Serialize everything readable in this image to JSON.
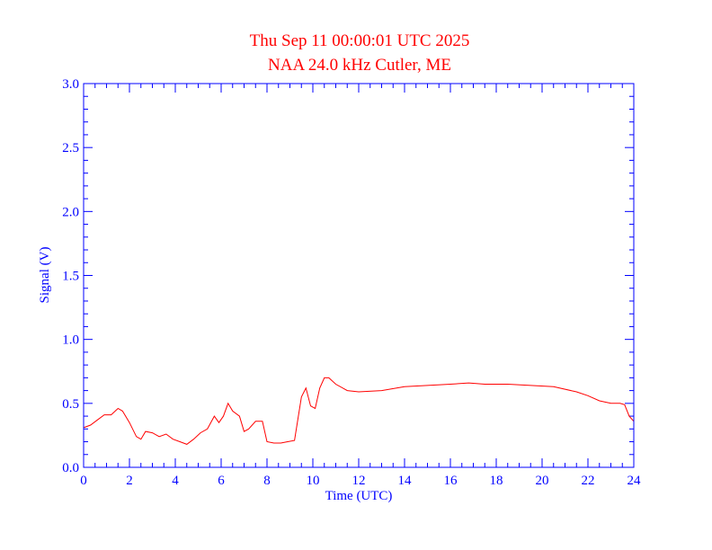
{
  "chart_data": {
    "type": "line",
    "title": "Thu Sep 11 00:00:01 UTC 2025",
    "subtitle": "NAA 24.0 kHz Cutler, ME",
    "xlabel": "Time (UTC)",
    "ylabel": "Signal (V)",
    "xlim": [
      0,
      24
    ],
    "ylim": [
      0,
      3.0
    ],
    "x_ticks": [
      "0",
      "2",
      "4",
      "6",
      "8",
      "10",
      "12",
      "14",
      "16",
      "18",
      "20",
      "22",
      "24"
    ],
    "y_ticks": [
      "0.0",
      "0.5",
      "1.0",
      "1.5",
      "2.0",
      "2.5",
      "3.0"
    ],
    "grid": false,
    "colors": {
      "axis": "#0000ff",
      "series": "#ff0000",
      "title": "#ff0000"
    },
    "series": [
      {
        "x": [
          0,
          0.3,
          0.6,
          0.9,
          1.2,
          1.5,
          1.7,
          2.0,
          2.3,
          2.5,
          2.7,
          3.0,
          3.3,
          3.6,
          3.9,
          4.2,
          4.5,
          4.8,
          5.1,
          5.4,
          5.7,
          5.9,
          6.1,
          6.3,
          6.5,
          6.8,
          7.0,
          7.2,
          7.5,
          7.8,
          8.0,
          8.3,
          8.6,
          8.9,
          9.2,
          9.5,
          9.7,
          9.9,
          10.1,
          10.3,
          10.5,
          10.7,
          11.0,
          11.5,
          12.0,
          13.0,
          14.0,
          15.0,
          16.0,
          16.8,
          17.5,
          18.5,
          19.5,
          20.5,
          21.5,
          22.0,
          22.5,
          23.0,
          23.4,
          23.6,
          23.8,
          24.0
        ],
        "y": [
          0.31,
          0.33,
          0.37,
          0.41,
          0.41,
          0.46,
          0.44,
          0.35,
          0.24,
          0.22,
          0.28,
          0.27,
          0.24,
          0.26,
          0.22,
          0.2,
          0.18,
          0.22,
          0.27,
          0.3,
          0.4,
          0.35,
          0.4,
          0.5,
          0.44,
          0.4,
          0.28,
          0.3,
          0.36,
          0.36,
          0.2,
          0.19,
          0.19,
          0.2,
          0.21,
          0.55,
          0.62,
          0.48,
          0.46,
          0.62,
          0.7,
          0.7,
          0.65,
          0.6,
          0.59,
          0.6,
          0.63,
          0.64,
          0.65,
          0.66,
          0.65,
          0.65,
          0.64,
          0.63,
          0.59,
          0.56,
          0.52,
          0.5,
          0.5,
          0.49,
          0.4,
          0.36
        ]
      }
    ]
  }
}
